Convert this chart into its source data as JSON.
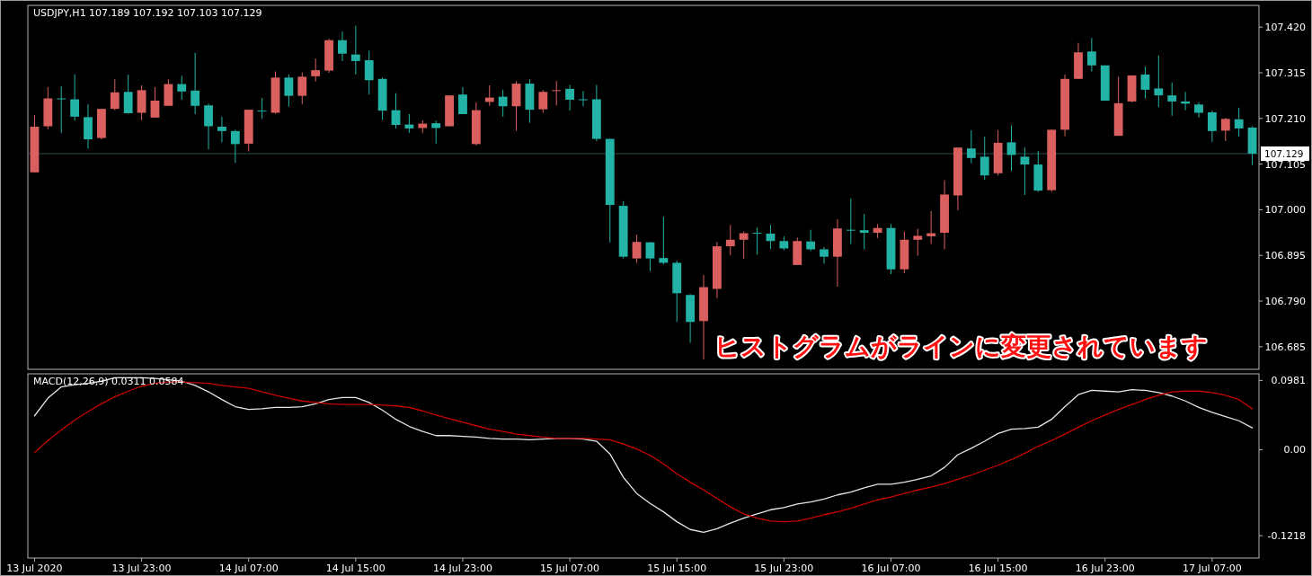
{
  "chart_data": [
    {
      "type": "candlestick",
      "title": "USDJPY,H1 107.189 107.192 107.103 107.129",
      "categories": [
        null,
        null,
        null,
        null,
        null,
        null,
        null,
        null,
        null,
        null,
        null,
        null,
        null,
        null,
        null,
        null,
        null,
        null,
        null,
        null,
        null,
        null,
        null,
        null,
        null,
        null,
        null,
        null,
        null,
        null,
        null,
        null,
        null,
        null,
        null,
        null,
        null,
        null,
        null,
        null,
        null,
        null,
        null,
        null,
        null,
        null,
        null,
        null,
        null,
        null,
        null,
        null,
        null,
        null,
        null,
        null,
        null,
        null,
        null,
        null,
        null,
        null,
        null,
        null,
        null,
        null,
        null,
        null,
        null,
        null,
        null,
        null,
        null,
        null,
        null,
        null,
        null,
        null,
        null,
        null,
        null,
        null,
        null,
        null,
        null,
        null,
        null,
        null,
        null,
        null,
        null,
        null
      ],
      "ohlc": [
        [
          107.086,
          107.218,
          107.086,
          107.191
        ],
        [
          107.192,
          107.282,
          107.185,
          107.256
        ],
        [
          107.256,
          107.284,
          107.176,
          107.255
        ],
        [
          107.254,
          107.311,
          107.205,
          107.214
        ],
        [
          107.213,
          107.243,
          107.141,
          107.162
        ],
        [
          107.165,
          107.232,
          107.162,
          107.232
        ],
        [
          107.232,
          107.3,
          107.229,
          107.27
        ],
        [
          107.271,
          107.311,
          107.221,
          107.222
        ],
        [
          107.223,
          107.286,
          107.206,
          107.275
        ],
        [
          107.212,
          107.282,
          107.212,
          107.251
        ],
        [
          107.239,
          107.3,
          107.239,
          107.289
        ],
        [
          107.289,
          107.308,
          107.253,
          107.272
        ],
        [
          107.274,
          107.361,
          107.22,
          107.239
        ],
        [
          107.24,
          107.244,
          107.139,
          107.192
        ],
        [
          107.191,
          107.214,
          107.155,
          107.181
        ],
        [
          107.181,
          107.184,
          107.108,
          107.151
        ],
        [
          107.152,
          107.23,
          107.134,
          107.23
        ],
        [
          107.228,
          107.257,
          107.209,
          107.226
        ],
        [
          107.223,
          107.318,
          107.221,
          107.304
        ],
        [
          107.304,
          107.311,
          107.237,
          107.262
        ],
        [
          107.262,
          107.316,
          107.243,
          107.306
        ],
        [
          107.307,
          107.348,
          107.295,
          107.321
        ],
        [
          107.32,
          107.393,
          107.315,
          107.39
        ],
        [
          107.39,
          107.41,
          107.342,
          107.359
        ],
        [
          107.357,
          107.423,
          107.311,
          107.342
        ],
        [
          107.344,
          107.366,
          107.265,
          107.298
        ],
        [
          107.301,
          107.304,
          107.207,
          107.228
        ],
        [
          107.229,
          107.268,
          107.187,
          107.195
        ],
        [
          107.196,
          107.22,
          107.177,
          107.187
        ],
        [
          107.188,
          107.206,
          107.176,
          107.198
        ],
        [
          107.199,
          107.205,
          107.152,
          107.188
        ],
        [
          107.192,
          107.263,
          107.192,
          107.263
        ],
        [
          107.265,
          107.282,
          107.22,
          107.22
        ],
        [
          107.151,
          107.247,
          107.148,
          107.229
        ],
        [
          107.248,
          107.286,
          107.239,
          107.258
        ],
        [
          107.26,
          107.276,
          107.214,
          107.238
        ],
        [
          107.238,
          107.296,
          107.182,
          107.29
        ],
        [
          107.29,
          107.3,
          107.2,
          107.23
        ],
        [
          107.231,
          107.275,
          107.223,
          107.271
        ],
        [
          107.273,
          107.296,
          107.24,
          107.275
        ],
        [
          107.278,
          107.287,
          107.228,
          107.253
        ],
        [
          107.254,
          107.273,
          107.238,
          107.252
        ],
        [
          107.254,
          107.287,
          107.158,
          107.163
        ],
        [
          107.163,
          107.163,
          106.925,
          107.011
        ],
        [
          107.009,
          107.02,
          106.888,
          106.892
        ],
        [
          106.888,
          106.943,
          106.878,
          106.926
        ],
        [
          106.925,
          106.926,
          106.859,
          106.888
        ],
        [
          106.889,
          106.984,
          106.874,
          106.878
        ],
        [
          106.878,
          106.883,
          106.742,
          106.808
        ],
        [
          106.804,
          106.806,
          106.694,
          106.742
        ],
        [
          106.744,
          106.85,
          106.656,
          106.822
        ],
        [
          106.818,
          106.926,
          106.797,
          106.916
        ],
        [
          106.916,
          106.965,
          106.895,
          106.931
        ],
        [
          106.931,
          106.95,
          106.887,
          106.946
        ],
        [
          106.947,
          106.959,
          106.897,
          106.946
        ],
        [
          106.945,
          106.965,
          106.91,
          106.928
        ],
        [
          106.928,
          106.939,
          106.907,
          106.911
        ],
        [
          106.873,
          106.936,
          106.873,
          106.928
        ],
        [
          106.927,
          106.954,
          106.905,
          106.909
        ],
        [
          106.909,
          106.914,
          106.876,
          106.892
        ],
        [
          106.892,
          106.978,
          106.823,
          106.957
        ],
        [
          106.954,
          107.026,
          106.921,
          106.953
        ],
        [
          106.953,
          106.99,
          106.909,
          106.947
        ],
        [
          106.947,
          106.967,
          106.935,
          106.958
        ],
        [
          106.958,
          106.967,
          106.852,
          106.863
        ],
        [
          106.863,
          106.95,
          106.854,
          106.931
        ],
        [
          106.931,
          106.956,
          106.894,
          106.94
        ],
        [
          106.939,
          106.997,
          106.921,
          106.946
        ],
        [
          106.947,
          107.068,
          106.909,
          107.035
        ],
        [
          107.033,
          107.143,
          106.999,
          107.143
        ],
        [
          107.141,
          107.183,
          107.107,
          107.119
        ],
        [
          107.122,
          107.168,
          107.069,
          107.079
        ],
        [
          107.084,
          107.183,
          107.079,
          107.154
        ],
        [
          107.155,
          107.194,
          107.089,
          107.126
        ],
        [
          107.122,
          107.143,
          107.034,
          107.104
        ],
        [
          107.104,
          107.135,
          107.041,
          107.044
        ],
        [
          107.045,
          107.184,
          107.041,
          107.184
        ],
        [
          107.184,
          107.311,
          107.169,
          107.301
        ],
        [
          107.301,
          107.384,
          107.301,
          107.362
        ],
        [
          107.364,
          107.395,
          107.318,
          107.332
        ],
        [
          107.332,
          107.332,
          107.251,
          107.251
        ],
        [
          107.17,
          107.306,
          107.17,
          107.245
        ],
        [
          107.249,
          107.309,
          107.247,
          107.309
        ],
        [
          107.311,
          107.329,
          107.256,
          107.276
        ],
        [
          107.279,
          107.355,
          107.236,
          107.263
        ],
        [
          107.263,
          107.293,
          107.216,
          107.249
        ],
        [
          107.249,
          107.271,
          107.229,
          107.244
        ],
        [
          107.242,
          107.247,
          107.212,
          107.223
        ],
        [
          107.224,
          107.228,
          107.156,
          107.181
        ],
        [
          107.182,
          107.211,
          107.158,
          107.209
        ],
        [
          107.208,
          107.235,
          107.168,
          107.187
        ],
        [
          107.189,
          107.192,
          107.103,
          107.129
        ]
      ],
      "colors": [
        "#d9605f",
        "#d9605f",
        "#23b3a6",
        "#23b3a6",
        "#23b3a6",
        "#d9605f",
        "#d9605f",
        "#23b3a6",
        "#d9605f",
        "#d9605f",
        "#d9605f",
        "#23b3a6",
        "#23b3a6",
        "#23b3a6",
        "#23b3a6",
        "#23b3a6",
        "#d9605f",
        "#23b3a6",
        "#d9605f",
        "#23b3a6",
        "#d9605f",
        "#d9605f",
        "#d9605f",
        "#23b3a6",
        "#23b3a6",
        "#23b3a6",
        "#23b3a6",
        "#23b3a6",
        "#23b3a6",
        "#d9605f",
        "#23b3a6",
        "#d9605f",
        "#23b3a6",
        "#d9605f",
        "#d9605f",
        "#23b3a6",
        "#d9605f",
        "#23b3a6",
        "#d9605f",
        "#d9605f",
        "#23b3a6",
        "#23b3a6",
        "#23b3a6",
        "#23b3a6",
        "#23b3a6",
        "#d9605f",
        "#23b3a6",
        "#23b3a6",
        "#23b3a6",
        "#23b3a6",
        "#d9605f",
        "#d9605f",
        "#d9605f",
        "#d9605f",
        "#23b3a6",
        "#23b3a6",
        "#23b3a6",
        "#d9605f",
        "#23b3a6",
        "#23b3a6",
        "#d9605f",
        "#23b3a6",
        "#23b3a6",
        "#d9605f",
        "#23b3a6",
        "#d9605f",
        "#d9605f",
        "#d9605f",
        "#d9605f",
        "#d9605f",
        "#23b3a6",
        "#23b3a6",
        "#d9605f",
        "#23b3a6",
        "#23b3a6",
        "#23b3a6",
        "#d9605f",
        "#d9605f",
        "#d9605f",
        "#23b3a6",
        "#23b3a6",
        "#d9605f",
        "#d9605f",
        "#23b3a6",
        "#23b3a6",
        "#23b3a6",
        "#23b3a6",
        "#23b3a6",
        "#23b3a6",
        "#d9605f",
        "#23b3a6",
        "#23b3a6"
      ],
      "ylim": [
        106.633,
        107.47
      ],
      "yticks": [
        {
          "value": 107.42,
          "label": "107.420"
        },
        {
          "value": 107.315,
          "label": "107.315"
        },
        {
          "value": 107.21,
          "label": "107.210"
        },
        {
          "value": 107.105,
          "label": "107.105"
        },
        {
          "value": 107.0,
          "label": "107.000"
        },
        {
          "value": 106.895,
          "label": "106.895"
        },
        {
          "value": 106.79,
          "label": "106.790"
        },
        {
          "value": 106.685,
          "label": "106.685"
        }
      ],
      "ref_lines": [
        {
          "axis": "y",
          "value": 107.129,
          "label": "107.129",
          "color": "#2f4f4f"
        }
      ],
      "annotations": [
        "ヒストグラムがラインに変更されています"
      ],
      "tick_labels": "y"
    },
    {
      "type": "line",
      "title": "MACD(12,26,9) 0.0311 0.0584",
      "categories": [
        "13 Jul 2020",
        null,
        null,
        null,
        null,
        null,
        null,
        null,
        "13 Jul 23:00",
        null,
        null,
        null,
        null,
        null,
        null,
        null,
        "14 Jul 07:00",
        null,
        null,
        null,
        null,
        null,
        null,
        null,
        "14 Jul 15:00",
        null,
        null,
        null,
        null,
        null,
        null,
        null,
        "14 Jul 23:00",
        null,
        null,
        null,
        null,
        null,
        null,
        null,
        "15 Jul 07:00",
        null,
        null,
        null,
        null,
        null,
        null,
        null,
        "15 Jul 15:00",
        null,
        null,
        null,
        null,
        null,
        null,
        null,
        "15 Jul 23:00",
        null,
        null,
        null,
        null,
        null,
        null,
        null,
        "16 Jul 07:00",
        null,
        null,
        null,
        null,
        null,
        null,
        null,
        "16 Jul 15:00",
        null,
        null,
        null,
        null,
        null,
        null,
        null,
        "16 Jul 23:00",
        null,
        null,
        null,
        null,
        null,
        null,
        null,
        "17 Jul 07:00",
        null,
        null,
        null
      ],
      "series": [
        {
          "color": "#e6e6e6",
          "values": [
            0.048,
            0.073,
            0.089,
            0.092,
            0.094,
            0.097,
            0.102,
            0.102,
            0.102,
            0.101,
            0.099,
            0.097,
            0.091,
            0.082,
            0.071,
            0.061,
            0.057,
            0.058,
            0.06,
            0.06,
            0.061,
            0.065,
            0.071,
            0.074,
            0.074,
            0.067,
            0.056,
            0.043,
            0.033,
            0.026,
            0.02,
            0.02,
            0.019,
            0.018,
            0.016,
            0.015,
            0.015,
            0.014,
            0.015,
            0.016,
            0.016,
            0.015,
            0.012,
            -0.006,
            -0.039,
            -0.062,
            -0.076,
            -0.088,
            -0.102,
            -0.113,
            -0.117,
            -0.112,
            -0.104,
            -0.097,
            -0.091,
            -0.085,
            -0.082,
            -0.077,
            -0.074,
            -0.07,
            -0.064,
            -0.06,
            -0.054,
            -0.049,
            -0.049,
            -0.046,
            -0.042,
            -0.037,
            -0.025,
            -0.007,
            0.002,
            0.012,
            0.023,
            0.029,
            0.03,
            0.032,
            0.043,
            0.061,
            0.078,
            0.084,
            0.083,
            0.082,
            0.085,
            0.084,
            0.081,
            0.076,
            0.069,
            0.06,
            0.053,
            0.047,
            0.041,
            0.031
          ]
        },
        {
          "color": "#cc0000",
          "values": [
            -0.004,
            0.013,
            0.028,
            0.042,
            0.054,
            0.065,
            0.075,
            0.083,
            0.09,
            0.094,
            0.096,
            0.096,
            0.095,
            0.094,
            0.091,
            0.089,
            0.087,
            0.082,
            0.077,
            0.073,
            0.069,
            0.067,
            0.065,
            0.064,
            0.064,
            0.064,
            0.063,
            0.062,
            0.06,
            0.055,
            0.049,
            0.044,
            0.039,
            0.034,
            0.029,
            0.026,
            0.022,
            0.02,
            0.018,
            0.016,
            0.016,
            0.016,
            0.015,
            0.014,
            0.008,
            0.001,
            -0.008,
            -0.02,
            -0.034,
            -0.046,
            -0.057,
            -0.069,
            -0.081,
            -0.091,
            -0.097,
            -0.101,
            -0.102,
            -0.101,
            -0.097,
            -0.092,
            -0.088,
            -0.083,
            -0.077,
            -0.071,
            -0.067,
            -0.062,
            -0.057,
            -0.053,
            -0.048,
            -0.042,
            -0.036,
            -0.029,
            -0.022,
            -0.014,
            -0.005,
            0.005,
            0.013,
            0.022,
            0.032,
            0.041,
            0.049,
            0.057,
            0.064,
            0.071,
            0.077,
            0.082,
            0.083,
            0.083,
            0.081,
            0.077,
            0.071,
            0.058
          ]
        }
      ],
      "ylim": [
        -0.1534,
        0.1075
      ],
      "yticks": [
        {
          "value": 0.0981,
          "label": "0.0981"
        },
        {
          "value": 0,
          "label": "0.00"
        },
        {
          "value": -0.1218,
          "label": "-0.1218"
        }
      ]
    }
  ]
}
